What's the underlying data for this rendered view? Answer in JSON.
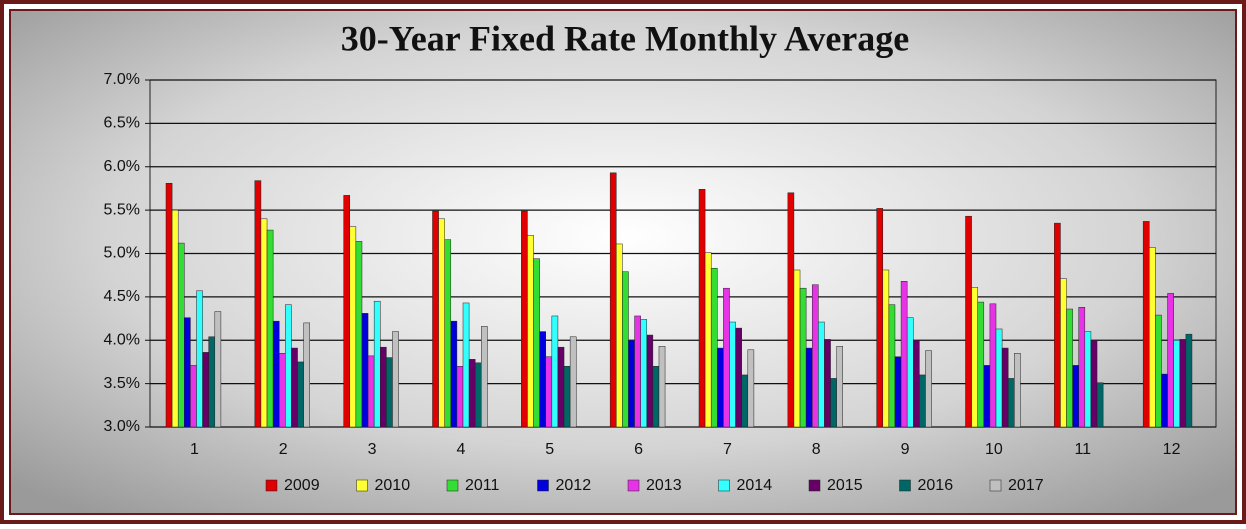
{
  "chart_data": {
    "type": "bar",
    "title": "30-Year Fixed Rate Monthly Average",
    "categories": [
      "1",
      "2",
      "3",
      "4",
      "5",
      "6",
      "7",
      "8",
      "9",
      "10",
      "11",
      "12"
    ],
    "series": [
      {
        "name": "2009",
        "color": "#e00000",
        "values": [
          5.81,
          5.84,
          5.67,
          5.49,
          5.49,
          5.93,
          5.74,
          5.7,
          5.52,
          5.43,
          5.35,
          5.37
        ]
      },
      {
        "name": "2010",
        "color": "#ffff33",
        "values": [
          5.5,
          5.4,
          5.31,
          5.4,
          5.21,
          5.11,
          5.01,
          4.81,
          4.81,
          4.61,
          4.71,
          5.07
        ]
      },
      {
        "name": "2011",
        "color": "#33dd33",
        "values": [
          5.12,
          5.27,
          5.14,
          5.16,
          4.94,
          4.79,
          4.83,
          4.6,
          4.41,
          4.44,
          4.36,
          4.29
        ]
      },
      {
        "name": "2012",
        "color": "#0000dd",
        "values": [
          4.26,
          4.22,
          4.31,
          4.22,
          4.1,
          4.0,
          3.91,
          3.91,
          3.81,
          3.71,
          3.71,
          3.61
        ]
      },
      {
        "name": "2013",
        "color": "#e633e6",
        "values": [
          3.71,
          3.85,
          3.82,
          3.7,
          3.81,
          4.28,
          4.6,
          4.64,
          4.68,
          4.42,
          4.38,
          4.54
        ]
      },
      {
        "name": "2014",
        "color": "#33ffff",
        "values": [
          4.57,
          4.41,
          4.45,
          4.43,
          4.28,
          4.24,
          4.21,
          4.21,
          4.26,
          4.13,
          4.1,
          4.0
        ]
      },
      {
        "name": "2015",
        "color": "#660066",
        "values": [
          3.86,
          3.91,
          3.92,
          3.78,
          3.92,
          4.06,
          4.14,
          4.01,
          4.0,
          3.91,
          4.0,
          4.01
        ]
      },
      {
        "name": "2016",
        "color": "#006666",
        "values": [
          4.04,
          3.75,
          3.8,
          3.74,
          3.7,
          3.7,
          3.6,
          3.56,
          3.6,
          3.56,
          3.51,
          4.07
        ]
      },
      {
        "name": "2017",
        "color": "#c0c0c0",
        "values": [
          4.33,
          4.2,
          4.1,
          4.16,
          4.04,
          3.93,
          3.89,
          3.93,
          3.88,
          3.85,
          null,
          null
        ]
      }
    ],
    "ylim": [
      3.0,
      7.0
    ],
    "yticks": [
      {
        "value": 3.0,
        "label": "3.0%"
      },
      {
        "value": 3.5,
        "label": "3.5%"
      },
      {
        "value": 4.0,
        "label": "4.0%"
      },
      {
        "value": 4.5,
        "label": "4.5%"
      },
      {
        "value": 5.0,
        "label": "5.0%"
      },
      {
        "value": 5.5,
        "label": "5.5%"
      },
      {
        "value": 6.0,
        "label": "6.0%"
      },
      {
        "value": 6.5,
        "label": "6.5%"
      },
      {
        "value": 7.0,
        "label": "7.0%"
      }
    ],
    "grid": true,
    "legend": "bottom"
  }
}
